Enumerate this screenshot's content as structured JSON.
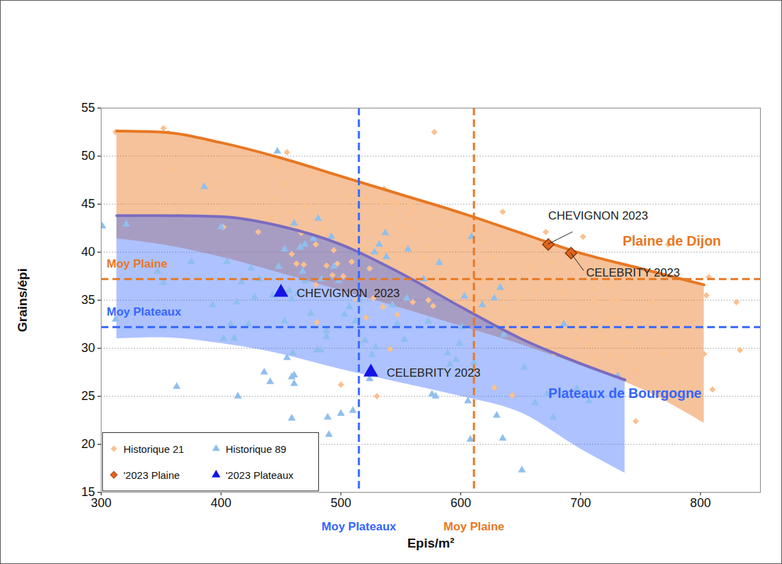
{
  "chart_data": {
    "type": "scatter",
    "xlabel": "Epis/m²",
    "ylabel": "Grains/épi",
    "xlim": [
      300,
      850
    ],
    "ylim": [
      15,
      55
    ],
    "xticks": [
      300,
      400,
      500,
      600,
      700,
      800
    ],
    "yticks": [
      15,
      20,
      25,
      30,
      35,
      40,
      45,
      50,
      55
    ],
    "grid": true,
    "legend": "lower left",
    "series": [
      {
        "name": "Historique 21",
        "type": "scatter",
        "marker": "diamond",
        "color": "#fbc08f",
        "x": [
          312,
          352,
          358,
          381,
          392,
          455,
          446,
          453,
          443,
          441,
          458,
          470,
          476,
          484,
          485,
          479,
          467,
          463,
          459,
          469,
          479,
          488,
          494,
          497,
          502,
          493,
          480,
          505,
          509,
          513,
          519,
          521,
          524,
          527,
          533,
          534,
          536,
          538,
          541,
          543,
          547,
          549,
          552,
          556,
          558,
          559,
          561,
          568,
          571,
          574,
          578,
          573,
          577,
          583,
          588,
          592,
          605,
          607,
          612,
          619,
          619,
          622,
          625,
          628,
          634,
          635,
          640,
          643,
          648,
          657,
          659,
          663,
          671,
          674,
          676,
          678,
          683,
          686,
          695,
          698,
          699,
          702,
          708,
          710,
          711,
          713,
          718,
          722,
          723,
          725,
          726,
          731,
          733,
          735,
          738,
          744,
          746,
          749,
          760,
          770,
          773,
          803,
          805,
          807,
          810,
          830,
          833,
          500,
          530,
          431,
          417,
          402,
          356,
          541,
          547,
          580,
          535,
          560,
          521
        ],
        "values": [
          52.5,
          52.9,
          48.6,
          50.4,
          47.1,
          50.4,
          49.2,
          47.1,
          45.5,
          43.6,
          44.2,
          44.8,
          48.0,
          48.1,
          42.5,
          40.8,
          42.0,
          38.8,
          39.8,
          38.7,
          36.6,
          38.6,
          40.2,
          38.8,
          37.5,
          37.6,
          32.7,
          45.8,
          39.0,
          35.0,
          40.3,
          45.6,
          38.3,
          35.2,
          39.8,
          45.2,
          46.6,
          40.3,
          44.0,
          45.2,
          45.1,
          42.8,
          40.5,
          43.8,
          45.0,
          42.4,
          44.3,
          39.5,
          37.5,
          40.5,
          52.5,
          35.0,
          34.4,
          42.9,
          36.5,
          35.5,
          37.1,
          42.2,
          34.8,
          41.2,
          36.9,
          37.2,
          39.5,
          25.9,
          34.1,
          44.2,
          31.8,
          25.1,
          35.2,
          32.6,
          38.3,
          36.0,
          42.1,
          37.2,
          38.9,
          29.5,
          33.8,
          35.8,
          32.3,
          31.0,
          39.3,
          41.6,
          30.4,
          36.2,
          35.1,
          29.0,
          31.2,
          33.0,
          36.6,
          29.3,
          35.0,
          35.1,
          33.0,
          29.1,
          30.6,
          27.6,
          22.4,
          27.8,
          34.8,
          29.5,
          40.8,
          29.4,
          35.5,
          37.4,
          25.7,
          34.8,
          29.8,
          26.2,
          25.0,
          42.1,
          43.7,
          42.6,
          52.4,
          29.9,
          33.5,
          37.4,
          34.3,
          34.8,
          33.2
        ]
      },
      {
        "name": "Historique 89",
        "type": "scatter",
        "marker": "triangle",
        "color": "#8fbfee",
        "x": [
          301,
          312,
          321,
          347,
          352,
          363,
          375,
          386,
          393,
          400,
          402,
          405,
          408,
          411,
          413,
          414,
          417,
          423,
          425,
          428,
          432,
          436,
          441,
          443,
          448,
          447,
          453,
          455,
          457,
          459,
          459,
          460,
          461,
          461,
          459,
          464,
          461,
          466,
          468,
          470,
          475,
          477,
          480,
          481,
          483,
          484,
          488,
          488,
          489,
          490,
          492,
          494,
          500,
          503,
          507,
          510,
          512,
          515,
          520,
          524,
          526,
          528,
          529,
          532,
          538,
          543,
          547,
          553,
          556,
          560,
          569,
          573,
          576,
          579,
          582,
          589,
          591,
          596,
          599,
          601,
          603,
          606,
          608,
          609,
          611,
          618,
          628,
          630,
          633,
          635,
          636,
          651,
          653,
          662,
          672,
          677,
          686,
          697,
          707,
          731,
          453,
          498,
          470,
          555,
          537
        ],
        "values": [
          42.7,
          33.0,
          42.9,
          38.0,
          36.8,
          26.0,
          39.0,
          46.8,
          34.5,
          42.6,
          31.0,
          39.0,
          32.5,
          31.0,
          34.8,
          25.0,
          36.9,
          32.5,
          38.3,
          35.3,
          37.2,
          27.5,
          26.5,
          35.5,
          38.5,
          50.5,
          32.8,
          29.0,
          36.0,
          35.1,
          27.0,
          29.5,
          26.3,
          27.2,
          22.7,
          35.7,
          43.0,
          40.5,
          38.0,
          40.8,
          33.6,
          41.4,
          29.8,
          43.5,
          29.8,
          37.2,
          31.8,
          31.2,
          22.8,
          21.0,
          41.6,
          38.5,
          23.2,
          33.5,
          34.3,
          23.5,
          32.8,
          35.0,
          30.8,
          26.8,
          29.3,
          40.0,
          30.1,
          40.8,
          39.5,
          34.5,
          32.5,
          30.9,
          40.3,
          27.2,
          37.2,
          32.8,
          25.2,
          25.0,
          38.9,
          29.5,
          28.3,
          28.8,
          30.5,
          32.2,
          35.4,
          24.5,
          20.5,
          41.6,
          28.5,
          34.5,
          35.2,
          23.0,
          36.3,
          20.6,
          31.4,
          17.3,
          28.0,
          24.3,
          25.2,
          22.8,
          32.5,
          25.8,
          24.5,
          27.1,
          40.3,
          37.0,
          37.0,
          35.2,
          42.0
        ]
      },
      {
        "name": "'2023 Plaine",
        "type": "scatter",
        "marker": "diamond",
        "color": "#e2641a",
        "x": [
          673,
          692
        ],
        "values": [
          40.8,
          39.9
        ],
        "labels": [
          "CHEVIGNON 2023",
          "CELEBRITY 2023"
        ]
      },
      {
        "name": "'2023 Plateaux",
        "type": "scatter",
        "marker": "triangle",
        "color": "#1414e6",
        "x": [
          450,
          525
        ],
        "values": [
          35.8,
          27.5
        ],
        "labels": [
          "CHEVIGNON  2023",
          "CELEBRITY 2023"
        ]
      },
      {
        "name": "Plaine de Dijon",
        "type": "line",
        "color": "#e87722",
        "x": [
          313,
          350,
          400,
          450,
          500,
          550,
          600,
          650,
          700,
          750,
          803
        ],
        "values": [
          52.6,
          52.5,
          51.4,
          49.8,
          47.9,
          46.0,
          44.1,
          42.0,
          39.9,
          38.3,
          36.6
        ],
        "lower": [
          41.4,
          40.8,
          39.5,
          37.8,
          36.0,
          34.2,
          32.3,
          30.4,
          28.2,
          25.8,
          22.2
        ]
      },
      {
        "name": "Plateaux de Bourgogne",
        "type": "line",
        "colors": [
          "#7a6bc0",
          "#3366ff"
        ],
        "x": [
          313,
          350,
          400,
          450,
          500,
          550,
          600,
          650,
          700,
          737
        ],
        "values": [
          43.8,
          43.8,
          43.7,
          42.7,
          40.8,
          37.8,
          34.3,
          31.0,
          28.4,
          26.7
        ],
        "lower": [
          31.0,
          31.1,
          30.5,
          29.4,
          27.8,
          26.4,
          25.0,
          23.3,
          19.5,
          17.0
        ]
      }
    ],
    "reference_lines": [
      {
        "axis": "x",
        "value": 515,
        "label": "Moy Plateaux",
        "color": "#3366ff",
        "line_style": "dashed"
      },
      {
        "axis": "x",
        "value": 611,
        "label": "Moy Plaine",
        "color": "#e87722",
        "line_style": "dashed"
      },
      {
        "axis": "y",
        "value": 37.2,
        "label": "Moy Plaine",
        "color": "#e87722",
        "line_style": "dashed"
      },
      {
        "axis": "y",
        "value": 32.2,
        "label": "Moy Plateaux",
        "color": "#3366ff",
        "line_style": "dashed"
      }
    ]
  }
}
